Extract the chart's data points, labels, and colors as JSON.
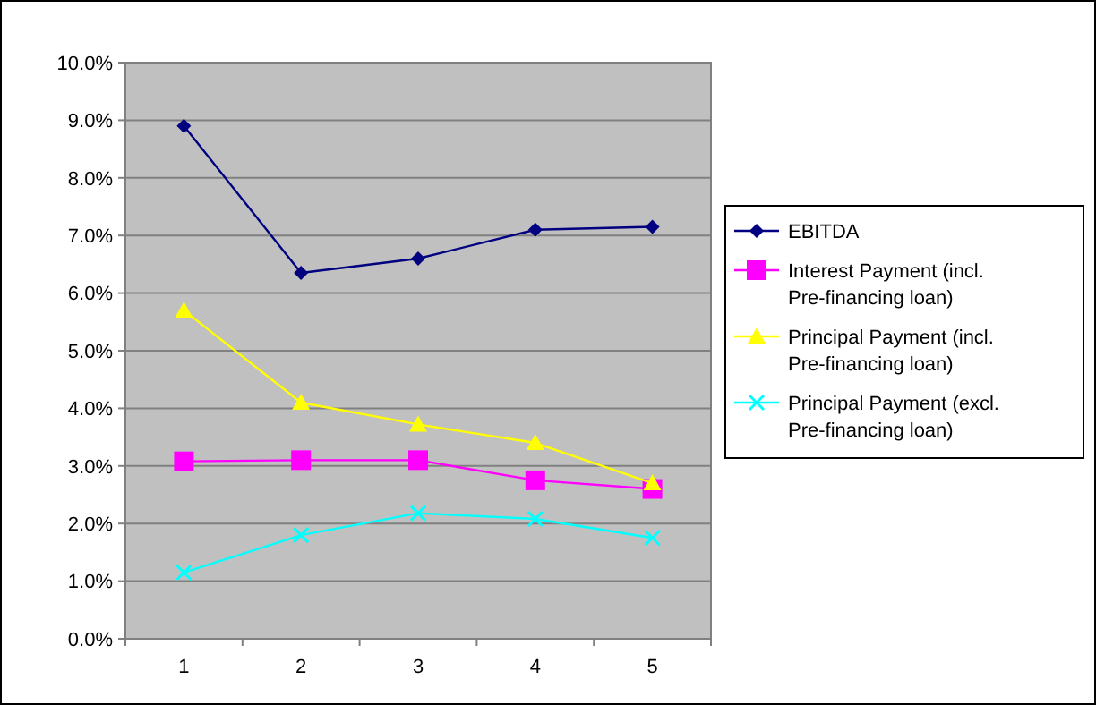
{
  "chart_data": {
    "type": "line",
    "categories": [
      "1",
      "2",
      "3",
      "4",
      "5"
    ],
    "series": [
      {
        "name": "EBITDA",
        "color": "#000080",
        "marker": "diamond",
        "values": [
          8.9,
          6.35,
          6.6,
          7.1,
          7.15
        ]
      },
      {
        "name": "Interest Payment (incl. Pre-financing loan)",
        "color": "#ff00ff",
        "marker": "square",
        "values": [
          3.08,
          3.1,
          3.1,
          2.75,
          2.6
        ]
      },
      {
        "name": "Principal Payment (incl. Pre-financing loan)",
        "color": "#ffff00",
        "marker": "triangle",
        "values": [
          5.7,
          4.1,
          3.72,
          3.4,
          2.7
        ]
      },
      {
        "name": "Principal Payment (excl. Pre-financing loan)",
        "color": "#00ffff",
        "marker": "cross",
        "values": [
          1.15,
          1.8,
          2.18,
          2.08,
          1.75
        ]
      }
    ],
    "ylim": [
      0,
      10
    ],
    "yticks": [
      {
        "value": 0,
        "label": "0.0%"
      },
      {
        "value": 1,
        "label": "1.0%"
      },
      {
        "value": 2,
        "label": "2.0%"
      },
      {
        "value": 3,
        "label": "3.0%"
      },
      {
        "value": 4,
        "label": "4.0%"
      },
      {
        "value": 5,
        "label": "5.0%"
      },
      {
        "value": 6,
        "label": "6.0%"
      },
      {
        "value": 7,
        "label": "7.0%"
      },
      {
        "value": 8,
        "label": "8.0%"
      },
      {
        "value": 9,
        "label": "9.0%"
      },
      {
        "value": 10,
        "label": "10.0%"
      }
    ],
    "grid": "y",
    "legend": "right"
  }
}
